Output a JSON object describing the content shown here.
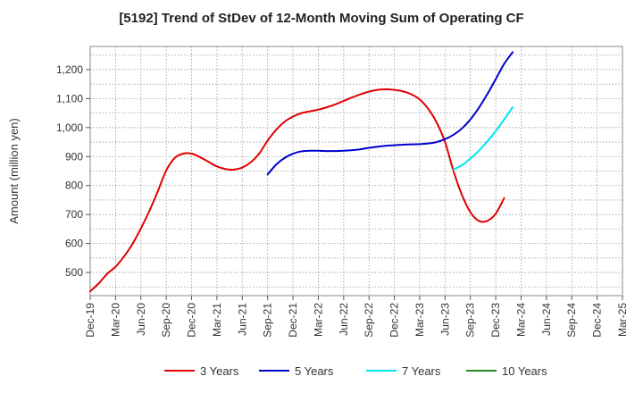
{
  "chart_data": {
    "type": "line",
    "title": "[5192]  Trend of StDev of 12-Month Moving Sum of Operating CF",
    "xlabel": "",
    "ylabel": "Amount (million yen)",
    "ylim": [
      420,
      1280
    ],
    "y_ticks": [
      500,
      600,
      700,
      800,
      900,
      1000,
      1100,
      1200
    ],
    "y_tick_labels": [
      "500",
      "600",
      "700",
      "800",
      "900",
      "1,000",
      "1,100",
      "1,200"
    ],
    "x_tick_labels": [
      "Dec-19",
      "Mar-20",
      "Jun-20",
      "Sep-20",
      "Dec-20",
      "Mar-21",
      "Jun-21",
      "Sep-21",
      "Dec-21",
      "Mar-22",
      "Jun-22",
      "Sep-22",
      "Dec-22",
      "Mar-23",
      "Jun-23",
      "Sep-23",
      "Dec-23",
      "Mar-24",
      "Jun-24",
      "Sep-24",
      "Dec-24",
      "Mar-25"
    ],
    "grid": true,
    "legend_position": "bottom",
    "series": [
      {
        "name": "3 Years",
        "color": "#e00000",
        "start_month_index": 0,
        "values": [
          435,
          462,
          495,
          520,
          555,
          598,
          652,
          712,
          780,
          852,
          895,
          910,
          910,
          898,
          882,
          866,
          857,
          855,
          862,
          880,
          910,
          955,
          992,
          1020,
          1038,
          1050,
          1056,
          1062,
          1070,
          1080,
          1092,
          1104,
          1115,
          1124,
          1130,
          1132,
          1130,
          1125,
          1115,
          1097,
          1065,
          1018,
          950,
          850,
          768,
          708,
          678,
          678,
          703,
          757
        ]
      },
      {
        "name": "5 Years",
        "color": "#0000cc",
        "start_month_index": 21,
        "values": [
          838,
          872,
          895,
          910,
          918,
          920,
          920,
          919,
          919,
          920,
          922,
          925,
          930,
          934,
          937,
          939,
          941,
          942,
          943,
          945,
          950,
          960,
          975,
          997,
          1028,
          1068,
          1115,
          1167,
          1220,
          1260
        ]
      },
      {
        "name": "7 Years",
        "color": "#00e5ee",
        "start_month_index": 43,
        "values": [
          855,
          870,
          893,
          920,
          952,
          988,
          1028,
          1070
        ]
      },
      {
        "name": "10 Years",
        "color": "#228b22",
        "start_month_index": 0,
        "values": []
      }
    ]
  }
}
